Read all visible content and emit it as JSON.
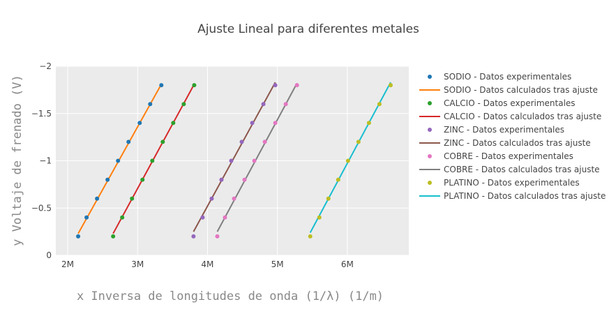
{
  "chart_data": {
    "type": "scatter",
    "title": "Ajuste Lineal para diferentes metales",
    "xlabel": "x Inversa de longitudes de onda (1/λ) (1/m)",
    "ylabel": "y Voltaje de frenado (V)",
    "xlim": [
      1.83,
      6.88
    ],
    "ylim": [
      0.0,
      -2.0
    ],
    "x_ticks": [
      2,
      3,
      4,
      5,
      6
    ],
    "x_tick_labels": [
      "2M",
      "3M",
      "4M",
      "5M",
      "6M"
    ],
    "y_ticks": [
      0,
      -0.5,
      -1,
      -1.5,
      -2
    ],
    "y_tick_labels": [
      "0",
      "−0.5",
      "−1",
      "−1.5",
      "−2"
    ],
    "x_unit_note": "millions of 1/m",
    "grid": true,
    "plot_background": "#ebebeb",
    "legend_position": "right",
    "series": [
      {
        "name": "SODIO - Datos experimentales",
        "kind": "markers",
        "color": "#1f77b4",
        "x": [
          2.15,
          2.27,
          2.42,
          2.57,
          2.72,
          2.87,
          3.03,
          3.18,
          3.34
        ],
        "y": [
          -0.2,
          -0.4,
          -0.6,
          -0.8,
          -1.0,
          -1.2,
          -1.4,
          -1.6,
          -1.8
        ]
      },
      {
        "name": "SODIO - Datos calculados tras ajuste",
        "kind": "line",
        "color": "#ff7f0e",
        "x": [
          2.15,
          3.34
        ],
        "y": [
          -0.23,
          -1.81
        ]
      },
      {
        "name": "CALCIO - Datos experimentales",
        "kind": "markers",
        "color": "#2ca02c",
        "x": [
          2.65,
          2.78,
          2.92,
          3.07,
          3.21,
          3.36,
          3.51,
          3.66,
          3.81
        ],
        "y": [
          -0.2,
          -0.4,
          -0.6,
          -0.8,
          -1.0,
          -1.2,
          -1.4,
          -1.6,
          -1.8
        ]
      },
      {
        "name": "CALCIO - Datos calculados tras ajuste",
        "kind": "line",
        "color": "#d62728",
        "x": [
          2.65,
          3.81
        ],
        "y": [
          -0.23,
          -1.81
        ]
      },
      {
        "name": "ZINC - Datos experimentales",
        "kind": "markers",
        "color": "#9467bd",
        "x": [
          3.8,
          3.93,
          4.06,
          4.2,
          4.34,
          4.49,
          4.64,
          4.8,
          4.97
        ],
        "y": [
          -0.2,
          -0.4,
          -0.6,
          -0.8,
          -1.0,
          -1.2,
          -1.4,
          -1.6,
          -1.8
        ]
      },
      {
        "name": "ZINC - Datos calculados tras ajuste",
        "kind": "line",
        "color": "#8c564b",
        "x": [
          3.8,
          4.97
        ],
        "y": [
          -0.25,
          -1.83
        ]
      },
      {
        "name": " COBRE - Datos experimentales",
        "kind": "markers",
        "color": "#e377c2",
        "x": [
          4.14,
          4.25,
          4.38,
          4.53,
          4.67,
          4.82,
          4.97,
          5.12,
          5.28
        ],
        "y": [
          -0.2,
          -0.4,
          -0.6,
          -0.8,
          -1.0,
          -1.2,
          -1.4,
          -1.6,
          -1.8
        ]
      },
      {
        "name": "COBRE - Datos calculados tras ajuste",
        "kind": "line",
        "color": "#7f7f7f",
        "x": [
          4.14,
          5.28
        ],
        "y": [
          -0.25,
          -1.82
        ]
      },
      {
        "name": "PLATINO - Datos experimentales",
        "kind": "markers",
        "color": "#bcbd22",
        "x": [
          5.47,
          5.6,
          5.73,
          5.87,
          6.01,
          6.16,
          6.31,
          6.46,
          6.62
        ],
        "y": [
          -0.2,
          -0.4,
          -0.6,
          -0.8,
          -1.0,
          -1.2,
          -1.4,
          -1.6,
          -1.8
        ]
      },
      {
        "name": "PLATINO - Datos calculados tras ajuste",
        "kind": "line",
        "color": "#17becf",
        "x": [
          5.47,
          6.62
        ],
        "y": [
          -0.24,
          -1.83
        ]
      }
    ]
  }
}
